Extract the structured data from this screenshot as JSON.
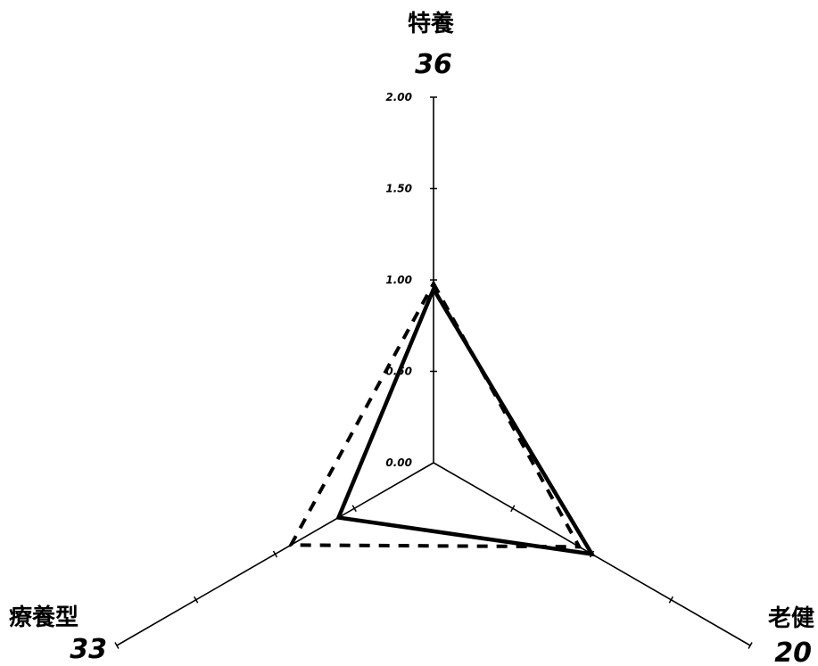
{
  "chart_data": {
    "type": "radar",
    "axes": [
      {
        "name": "特養",
        "value_label": "36"
      },
      {
        "name": "老健",
        "value_label": "20"
      },
      {
        "name": "療養型",
        "value_label": "33"
      }
    ],
    "ticks": [
      "0.00",
      "0.50",
      "1.00",
      "1.50",
      "2.00"
    ],
    "rlim": [
      0,
      2
    ],
    "series": [
      {
        "style": "solid",
        "values": [
          0.95,
          1.0,
          0.6
        ]
      },
      {
        "style": "dashed",
        "values": [
          0.98,
          0.92,
          0.9
        ]
      }
    ],
    "grid": false,
    "legend": "none"
  }
}
